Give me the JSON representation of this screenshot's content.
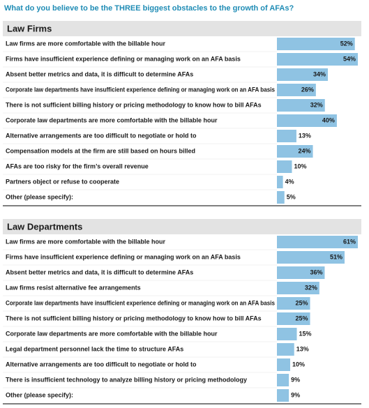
{
  "title": "What do you believe to be the THREE biggest obstacles to the growth of AFAs?",
  "chart_data": [
    {
      "type": "bar",
      "orientation": "horizontal",
      "title": "Law Firms",
      "color": "#8fc3e3",
      "xlim": [
        0,
        54
      ],
      "categories": [
        "Law firms are more comfortable with the billable hour",
        "Firms have insufficient experience defining or managing work on an AFA basis",
        "Absent better metrics and data, it is difficult to determine AFAs",
        "Corporate law departments have insufficient experience defining or managing work on an AFA basis",
        "There is not sufficient billing history or pricing methodology to know how to bill AFAs",
        "Corporate law departments are more comfortable with the billable hour",
        "Alternative arrangements are too difficult to negotiate or hold to",
        "Compensation models at the firm are still based on hours billed",
        "AFAs are too risky for the firm’s overall revenue",
        "Partners object or refuse to cooperate",
        "Other (please specify):"
      ],
      "values": [
        52,
        54,
        34,
        26,
        32,
        40,
        13,
        24,
        10,
        4,
        5
      ],
      "value_labels": [
        "52%",
        "54%",
        "34%",
        "26%",
        "32%",
        "40%",
        "13%",
        "24%",
        "10%",
        "4%",
        "5%"
      ]
    },
    {
      "type": "bar",
      "orientation": "horizontal",
      "title": "Law Departments",
      "color": "#8fc3e3",
      "xlim": [
        0,
        61
      ],
      "categories": [
        "Law firms are more comfortable with the billable hour",
        "Firms have insufficient experience defining or managing work on an AFA basis",
        "Absent better metrics and data, it is difficult to determine AFAs",
        "Law firms resist alternative fee arrangements",
        "Corporate law departments have insufficient experience defining or managing work on an AFA basis",
        "There is not sufficient billing history or pricing methodology to know how to bill AFAs",
        "Corporate law departments are more comfortable with the billable hour",
        "Legal department personnel lack the time to structure AFAs",
        "Alternative arrangements are too difficult to negotiate or hold to",
        "There is insufficient technology to analyze billing history or pricing methodology",
        "Other (please specify):"
      ],
      "values": [
        61,
        51,
        36,
        32,
        25,
        25,
        15,
        13,
        10,
        9,
        9
      ],
      "value_labels": [
        "61%",
        "51%",
        "36%",
        "32%",
        "25%",
        "25%",
        "15%",
        "13%",
        "10%",
        "9%",
        "9%"
      ]
    }
  ]
}
